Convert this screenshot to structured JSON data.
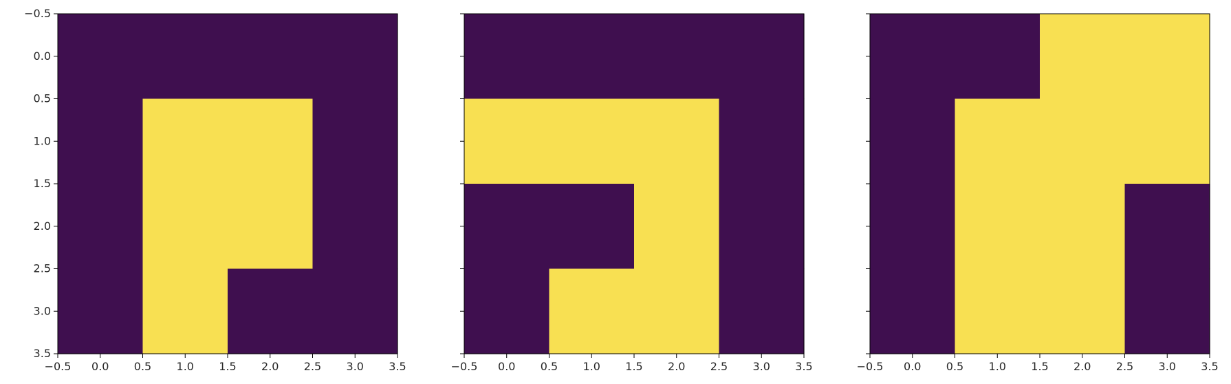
{
  "colors": {
    "off": "#3f0f4f",
    "on": "#f8e052",
    "axis": "#000000",
    "text": "#262626",
    "background": "#ffffff"
  },
  "chart_data": [
    {
      "type": "heatmap",
      "title": "",
      "xlabel": "",
      "ylabel": "",
      "xlim": [
        -0.5,
        3.5
      ],
      "ylim": [
        3.5,
        -0.5
      ],
      "xticks": [
        "−0.5",
        "0.0",
        "0.5",
        "1.0",
        "1.5",
        "2.0",
        "2.5",
        "3.0",
        "3.5"
      ],
      "yticks": [
        "−0.5",
        "0.0",
        "0.5",
        "1.0",
        "1.5",
        "2.0",
        "2.5",
        "3.0",
        "3.5"
      ],
      "show_yticklabels": true,
      "grid": false,
      "matrix": [
        [
          0,
          0,
          0,
          0
        ],
        [
          0,
          1,
          1,
          0
        ],
        [
          0,
          1,
          1,
          0
        ],
        [
          0,
          1,
          0,
          0
        ]
      ]
    },
    {
      "type": "heatmap",
      "title": "",
      "xlabel": "",
      "ylabel": "",
      "xlim": [
        -0.5,
        3.5
      ],
      "ylim": [
        3.5,
        -0.5
      ],
      "xticks": [
        "−0.5",
        "0.0",
        "0.5",
        "1.0",
        "1.5",
        "2.0",
        "2.5",
        "3.0",
        "3.5"
      ],
      "yticks": [
        "−0.5",
        "0.0",
        "0.5",
        "1.0",
        "1.5",
        "2.0",
        "2.5",
        "3.0",
        "3.5"
      ],
      "show_yticklabels": false,
      "grid": false,
      "matrix": [
        [
          0,
          0,
          0,
          0
        ],
        [
          1,
          1,
          1,
          0
        ],
        [
          0,
          0,
          1,
          0
        ],
        [
          0,
          1,
          1,
          0
        ]
      ]
    },
    {
      "type": "heatmap",
      "title": "",
      "xlabel": "",
      "ylabel": "",
      "xlim": [
        -0.5,
        3.5
      ],
      "ylim": [
        3.5,
        -0.5
      ],
      "xticks": [
        "−0.5",
        "0.0",
        "0.5",
        "1.0",
        "1.5",
        "2.0",
        "2.5",
        "3.0",
        "3.5"
      ],
      "yticks": [
        "−0.5",
        "0.0",
        "0.5",
        "1.0",
        "1.5",
        "2.0",
        "2.5",
        "3.0",
        "3.5"
      ],
      "show_yticklabels": false,
      "grid": false,
      "matrix": [
        [
          0,
          0,
          1,
          1
        ],
        [
          0,
          1,
          1,
          1
        ],
        [
          0,
          1,
          1,
          0
        ],
        [
          0,
          1,
          1,
          0
        ]
      ]
    }
  ]
}
